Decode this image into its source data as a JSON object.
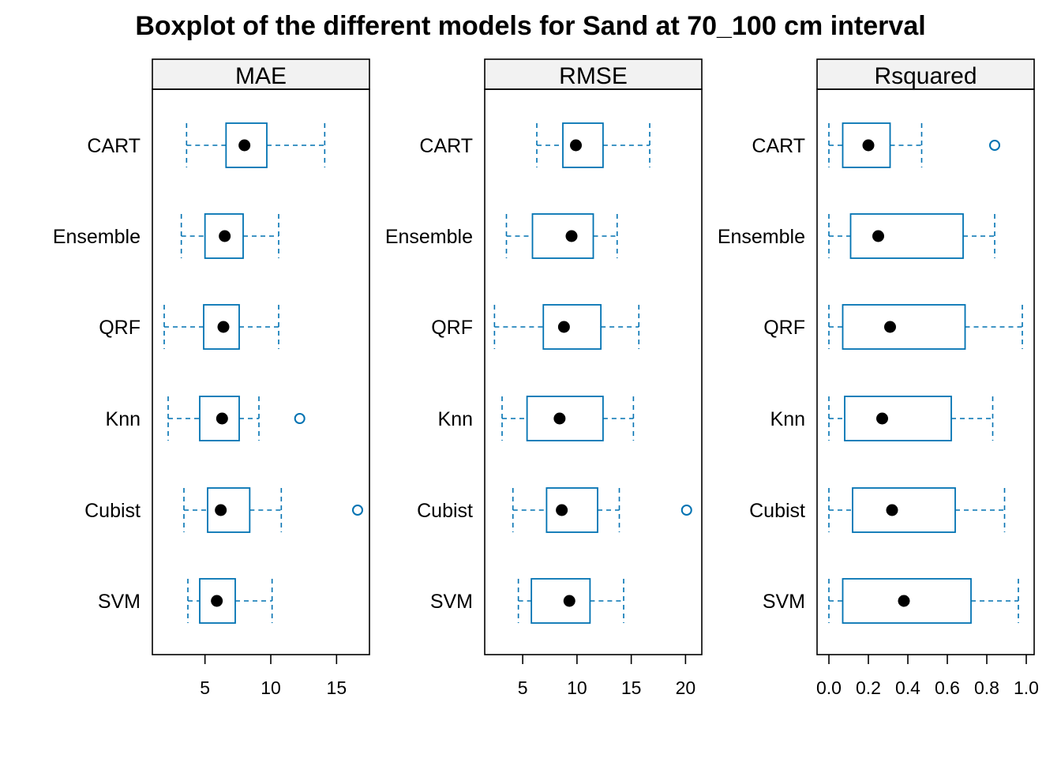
{
  "chart_data": {
    "type": "boxplot",
    "title": "Boxplot of the different models for Sand at 70_100 cm interval",
    "categories": [
      "CART",
      "Ensemble",
      "QRF",
      "Knn",
      "Cubist",
      "SVM"
    ],
    "colors": {
      "box": "#0072B2",
      "median": "#000000",
      "strip_bg": "#F2F2F2",
      "frame": "#000000"
    },
    "legend": "none",
    "grid": false,
    "panels": [
      {
        "name": "MAE",
        "xlim": [
          1,
          17.5
        ],
        "ticks": [
          5,
          10,
          15
        ],
        "tick_labels": [
          "5",
          "10",
          "15"
        ],
        "boxes": [
          {
            "category": "CART",
            "whisker_low": 3.6,
            "q1": 6.6,
            "median": 8.0,
            "q3": 9.7,
            "whisker_high": 14.1,
            "outliers": []
          },
          {
            "category": "Ensemble",
            "whisker_low": 3.2,
            "q1": 5.0,
            "median": 6.5,
            "q3": 7.9,
            "whisker_high": 10.6,
            "outliers": []
          },
          {
            "category": "QRF",
            "whisker_low": 1.9,
            "q1": 4.9,
            "median": 6.4,
            "q3": 7.6,
            "whisker_high": 10.6,
            "outliers": []
          },
          {
            "category": "Knn",
            "whisker_low": 2.2,
            "q1": 4.6,
            "median": 6.3,
            "q3": 7.6,
            "whisker_high": 9.1,
            "outliers": [
              12.2
            ]
          },
          {
            "category": "Cubist",
            "whisker_low": 3.4,
            "q1": 5.2,
            "median": 6.2,
            "q3": 8.4,
            "whisker_high": 10.8,
            "outliers": [
              16.6
            ]
          },
          {
            "category": "SVM",
            "whisker_low": 3.7,
            "q1": 4.6,
            "median": 5.9,
            "q3": 7.3,
            "whisker_high": 10.1,
            "outliers": []
          }
        ]
      },
      {
        "name": "RMSE",
        "xlim": [
          1.5,
          21.5
        ],
        "ticks": [
          5,
          10,
          15,
          20
        ],
        "tick_labels": [
          "5",
          "10",
          "15",
          "20"
        ],
        "boxes": [
          {
            "category": "CART",
            "whisker_low": 6.3,
            "q1": 8.7,
            "median": 9.9,
            "q3": 12.4,
            "whisker_high": 16.7,
            "outliers": []
          },
          {
            "category": "Ensemble",
            "whisker_low": 3.5,
            "q1": 5.9,
            "median": 9.5,
            "q3": 11.5,
            "whisker_high": 13.7,
            "outliers": []
          },
          {
            "category": "QRF",
            "whisker_low": 2.4,
            "q1": 6.9,
            "median": 8.8,
            "q3": 12.2,
            "whisker_high": 15.7,
            "outliers": []
          },
          {
            "category": "Knn",
            "whisker_low": 3.1,
            "q1": 5.4,
            "median": 8.4,
            "q3": 12.4,
            "whisker_high": 15.2,
            "outliers": []
          },
          {
            "category": "Cubist",
            "whisker_low": 4.1,
            "q1": 7.2,
            "median": 8.6,
            "q3": 11.9,
            "whisker_high": 13.9,
            "outliers": [
              20.1
            ]
          },
          {
            "category": "SVM",
            "whisker_low": 4.6,
            "q1": 5.8,
            "median": 9.3,
            "q3": 11.2,
            "whisker_high": 14.3,
            "outliers": []
          }
        ]
      },
      {
        "name": "Rsquared",
        "xlim": [
          -0.06,
          1.04
        ],
        "ticks": [
          0.0,
          0.2,
          0.4,
          0.6,
          0.8,
          1.0
        ],
        "tick_labels": [
          "0.0",
          "0.2",
          "0.4",
          "0.6",
          "0.8",
          "1.0"
        ],
        "boxes": [
          {
            "category": "CART",
            "whisker_low": 0.0,
            "q1": 0.07,
            "median": 0.2,
            "q3": 0.31,
            "whisker_high": 0.47,
            "outliers": [
              0.84
            ]
          },
          {
            "category": "Ensemble",
            "whisker_low": 0.0,
            "q1": 0.11,
            "median": 0.25,
            "q3": 0.68,
            "whisker_high": 0.84,
            "outliers": []
          },
          {
            "category": "QRF",
            "whisker_low": 0.0,
            "q1": 0.07,
            "median": 0.31,
            "q3": 0.69,
            "whisker_high": 0.98,
            "outliers": []
          },
          {
            "category": "Knn",
            "whisker_low": 0.0,
            "q1": 0.08,
            "median": 0.27,
            "q3": 0.62,
            "whisker_high": 0.83,
            "outliers": []
          },
          {
            "category": "Cubist",
            "whisker_low": 0.0,
            "q1": 0.12,
            "median": 0.32,
            "q3": 0.64,
            "whisker_high": 0.89,
            "outliers": []
          },
          {
            "category": "SVM",
            "whisker_low": 0.0,
            "q1": 0.07,
            "median": 0.38,
            "q3": 0.72,
            "whisker_high": 0.96,
            "outliers": []
          }
        ]
      }
    ]
  }
}
